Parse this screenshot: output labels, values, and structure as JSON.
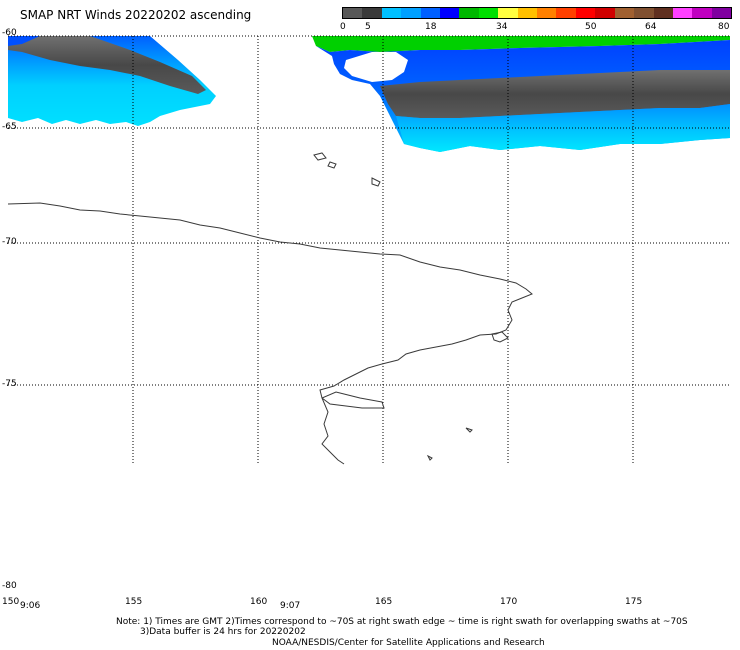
{
  "title": "SMAP NRT Winds 20220202 ascending",
  "colorbar": {
    "labels": [
      "0",
      "5",
      "18",
      "34",
      "50",
      "64",
      "80"
    ],
    "segments": [
      "#585858",
      "#3a3a3a",
      "#00c0ff",
      "#00a0ff",
      "#0060ff",
      "#0000ff",
      "#00b800",
      "#00e000",
      "#ffff40",
      "#ffc000",
      "#ff8000",
      "#ff4000",
      "#ff0000",
      "#d00000",
      "#a06030",
      "#805030",
      "#603020",
      "#ff40ff",
      "#c000c0",
      "#8000a0"
    ]
  },
  "map": {
    "lat_labels": [
      "-60",
      "-65",
      "-70",
      "-75",
      "-80"
    ],
    "lon_labels": [
      "150",
      "155",
      "160",
      "165",
      "170",
      "175"
    ],
    "time_labels": [
      "9:06",
      "9:07"
    ]
  },
  "notes": {
    "line1": "Note: 1) Times are GMT 2)Times correspond to ~70S at right swath edge ~ time is right swath for overlapping swaths at ~70S",
    "line2": "3)Data buffer is 24 hrs for 20220202",
    "line3": "NOAA/NESDIS/Center for Satellite Applications and Research"
  }
}
